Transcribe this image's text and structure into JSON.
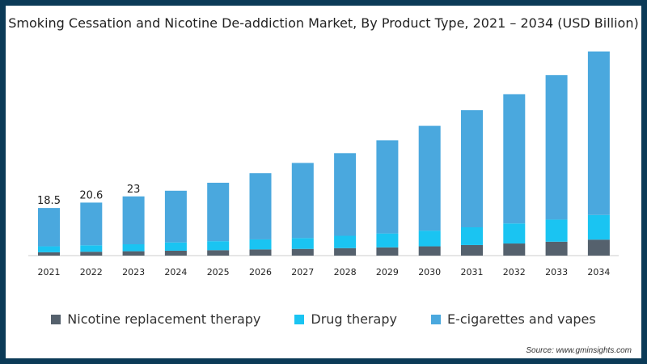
{
  "chart_data": {
    "type": "bar",
    "stacked": true,
    "title": "Smoking Cessation and Nicotine De-addiction Market, By Product Type, 2021 – 2034 (USD Billion)",
    "categories": [
      "2021",
      "2022",
      "2023",
      "2024",
      "2025",
      "2026",
      "2027",
      "2028",
      "2029",
      "2030",
      "2031",
      "2032",
      "2033",
      "2034"
    ],
    "series": [
      {
        "name": "Nicotine replacement therapy",
        "color": "#55616d",
        "values": [
          1.3,
          1.5,
          1.7,
          1.9,
          2.1,
          2.4,
          2.6,
          2.9,
          3.2,
          3.6,
          4.1,
          4.7,
          5.4,
          6.2
        ]
      },
      {
        "name": "Drug therapy",
        "color": "#1ac4f2",
        "values": [
          2.3,
          2.5,
          2.7,
          3.2,
          3.5,
          3.9,
          4.2,
          4.8,
          5.4,
          6.1,
          6.9,
          7.8,
          8.6,
          9.6
        ]
      },
      {
        "name": "E-cigarettes and vapes",
        "color": "#4aa8de",
        "values": [
          14.9,
          16.6,
          18.6,
          20.1,
          22.7,
          25.7,
          29.2,
          32.1,
          36.2,
          40.7,
          45.5,
          50.2,
          56.1,
          63.5
        ]
      }
    ],
    "data_labels": [
      "18.5",
      "20.6",
      "23"
    ],
    "ylim": [
      0,
      82
    ],
    "legend_position": "bottom",
    "grid": false
  },
  "source": "Source: www.gminsights.com"
}
